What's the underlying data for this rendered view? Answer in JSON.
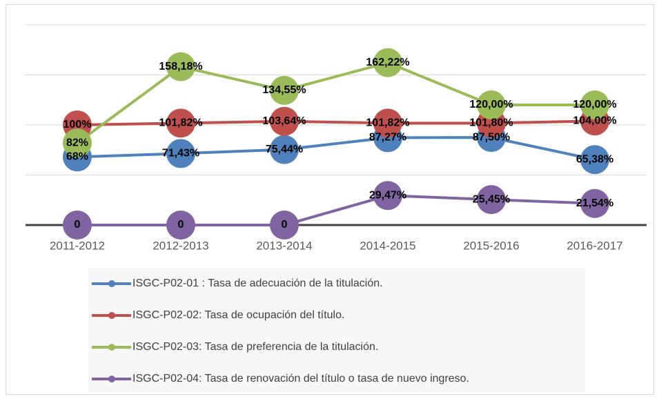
{
  "chart_data": {
    "type": "line",
    "categories": [
      "2011-2012",
      "2012-2013",
      "2013-2014",
      "2014-2015",
      "2015-2016",
      "2016-2017"
    ],
    "ylim": [
      0,
      200
    ],
    "yticks": [
      0,
      50,
      100,
      150,
      200
    ],
    "grid": true,
    "legend": "bottom",
    "series": [
      {
        "name": "ISGC-P02-01 : Tasa de adecuación de la titulación.",
        "color": "#4f81bd",
        "values": [
          68,
          71.43,
          75.44,
          87.27,
          87.5,
          65.38
        ],
        "value_labels": [
          "68%",
          "71,43%",
          "75,44%",
          "87,27%",
          "87,50%",
          "65,38%"
        ]
      },
      {
        "name": "ISGC-P02-02: Tasa de ocupación del título.",
        "color": "#c0504d",
        "values": [
          100,
          101.82,
          103.64,
          101.82,
          101.8,
          104
        ],
        "value_labels": [
          "100%",
          "101,82%",
          "103,64%",
          "101,82%",
          "101,80%",
          "104,00%"
        ]
      },
      {
        "name": "ISGC-P02-03: Tasa de preferencia de la titulación.",
        "color": "#9bbb59",
        "values": [
          82,
          158.18,
          134.55,
          162.22,
          120,
          120
        ],
        "value_labels": [
          "82%",
          "158,18%",
          "134,55%",
          "162,22%",
          "120,00%",
          "120,00%"
        ]
      },
      {
        "name": "ISGC-P02-04: Tasa de renovación del título o tasa de nuevo ingreso.",
        "color": "#8064a2",
        "values": [
          0,
          0,
          0,
          29.47,
          25.45,
          21.54
        ],
        "value_labels": [
          "0",
          "0",
          "0",
          "29,47%",
          "25,45%",
          "21,54%"
        ]
      }
    ]
  }
}
